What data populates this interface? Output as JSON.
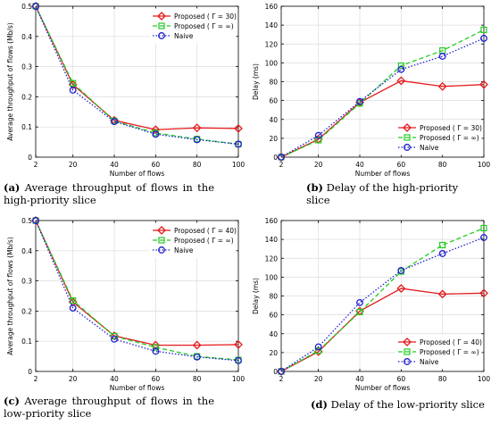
{
  "chart_data": [
    {
      "id": "a",
      "type": "line",
      "caption_tag": "(a)",
      "caption_text": "Average throughput of flows in the high-priority slice",
      "xlabel": "Number of flows",
      "ylabel": "Average throughput of flows (Mb/s)",
      "x": [
        2,
        20,
        40,
        60,
        80,
        100
      ],
      "xlim": [
        2,
        100
      ],
      "ylim": [
        0,
        0.5
      ],
      "yticks": [
        0,
        0.1,
        0.2,
        0.3,
        0.4,
        0.5
      ],
      "ytick_labels": [
        "0",
        "0.1",
        "0.2",
        "0.3",
        "0.4",
        "0.5"
      ],
      "legend_position": "top-right",
      "grid": true,
      "series": [
        {
          "name": "Proposed ( Γ = 30)",
          "color": "#e41a1c",
          "marker": "diamond",
          "dash": "solid",
          "values": [
            0.5,
            0.24,
            0.122,
            0.091,
            0.097,
            0.095
          ]
        },
        {
          "name": "Proposed ( Γ = ∞)",
          "color": "#22cc22",
          "marker": "square",
          "dash": "dashed",
          "values": [
            0.5,
            0.245,
            0.12,
            0.08,
            0.06,
            0.043
          ]
        },
        {
          "name": "Naive",
          "color": "#1f1fcf",
          "marker": "circle",
          "dash": "dotted",
          "values": [
            0.5,
            0.222,
            0.118,
            0.076,
            0.058,
            0.043
          ]
        }
      ]
    },
    {
      "id": "b",
      "type": "line",
      "caption_tag": "(b)",
      "caption_text": "Delay of the high-priority slice",
      "xlabel": "Number of flows",
      "ylabel": "Delay (ms)",
      "x": [
        2,
        20,
        40,
        60,
        80,
        100
      ],
      "xlim": [
        2,
        100
      ],
      "ylim": [
        0,
        160
      ],
      "yticks": [
        0,
        20,
        40,
        60,
        80,
        100,
        120,
        140,
        160
      ],
      "ytick_labels": [
        "0",
        "20",
        "40",
        "60",
        "80",
        "100",
        "120",
        "140",
        "160"
      ],
      "legend_position": "bottom-right",
      "grid": true,
      "series": [
        {
          "name": "Proposed ( Γ = 30)",
          "color": "#e41a1c",
          "marker": "diamond",
          "dash": "solid",
          "values": [
            0,
            19,
            58,
            81,
            75,
            77
          ]
        },
        {
          "name": "Proposed ( Γ = ∞)",
          "color": "#22cc22",
          "marker": "square",
          "dash": "dashed",
          "values": [
            0,
            18,
            57,
            97,
            113,
            135
          ]
        },
        {
          "name": "Naive",
          "color": "#1f1fcf",
          "marker": "circle",
          "dash": "dotted",
          "values": [
            0,
            23,
            59,
            93,
            107,
            126
          ]
        }
      ]
    },
    {
      "id": "c",
      "type": "line",
      "caption_tag": "(c)",
      "caption_text": "Average throughput of flows in the low-priority slice",
      "xlabel": "Number of flows",
      "ylabel": "Average throughput of flows (Mb/s)",
      "x": [
        2,
        20,
        40,
        60,
        80,
        100
      ],
      "xlim": [
        2,
        100
      ],
      "ylim": [
        0,
        0.5
      ],
      "yticks": [
        0,
        0.1,
        0.2,
        0.3,
        0.4,
        0.5
      ],
      "ytick_labels": [
        "0",
        "0.1",
        "0.2",
        "0.3",
        "0.4",
        "0.5"
      ],
      "legend_position": "top-right",
      "grid": true,
      "series": [
        {
          "name": "Proposed ( Γ = 40)",
          "color": "#e41a1c",
          "marker": "diamond",
          "dash": "solid",
          "values": [
            0.5,
            0.23,
            0.118,
            0.087,
            0.087,
            0.089
          ]
        },
        {
          "name": "Proposed ( Γ = ∞)",
          "color": "#22cc22",
          "marker": "square",
          "dash": "dashed",
          "values": [
            0.5,
            0.235,
            0.117,
            0.08,
            0.05,
            0.038
          ]
        },
        {
          "name": "Naive",
          "color": "#1f1fcf",
          "marker": "circle",
          "dash": "dotted",
          "values": [
            0.5,
            0.21,
            0.107,
            0.067,
            0.048,
            0.036
          ]
        }
      ]
    },
    {
      "id": "d",
      "type": "line",
      "caption_tag": "(d)",
      "caption_text": "Delay of the low-priority slice",
      "xlabel": "Number of flows",
      "ylabel": "Delay (ms)",
      "x": [
        2,
        20,
        40,
        60,
        80,
        100
      ],
      "xlim": [
        2,
        100
      ],
      "ylim": [
        0,
        160
      ],
      "yticks": [
        0,
        20,
        40,
        60,
        80,
        100,
        120,
        140,
        160
      ],
      "ytick_labels": [
        "0",
        "20",
        "40",
        "60",
        "80",
        "100",
        "120",
        "140",
        "160"
      ],
      "legend_position": "bottom-right",
      "grid": true,
      "series": [
        {
          "name": "Proposed ( Γ = 40)",
          "color": "#e41a1c",
          "marker": "diamond",
          "dash": "solid",
          "values": [
            0,
            21,
            64,
            88,
            82,
            83
          ]
        },
        {
          "name": "Proposed ( Γ = ∞)",
          "color": "#22cc22",
          "marker": "square",
          "dash": "dashed",
          "values": [
            0,
            22,
            63,
            106,
            134,
            152
          ]
        },
        {
          "name": "Naive",
          "color": "#1f1fcf",
          "marker": "circle",
          "dash": "dotted",
          "values": [
            0,
            26,
            73,
            107,
            125,
            142
          ]
        }
      ]
    }
  ]
}
